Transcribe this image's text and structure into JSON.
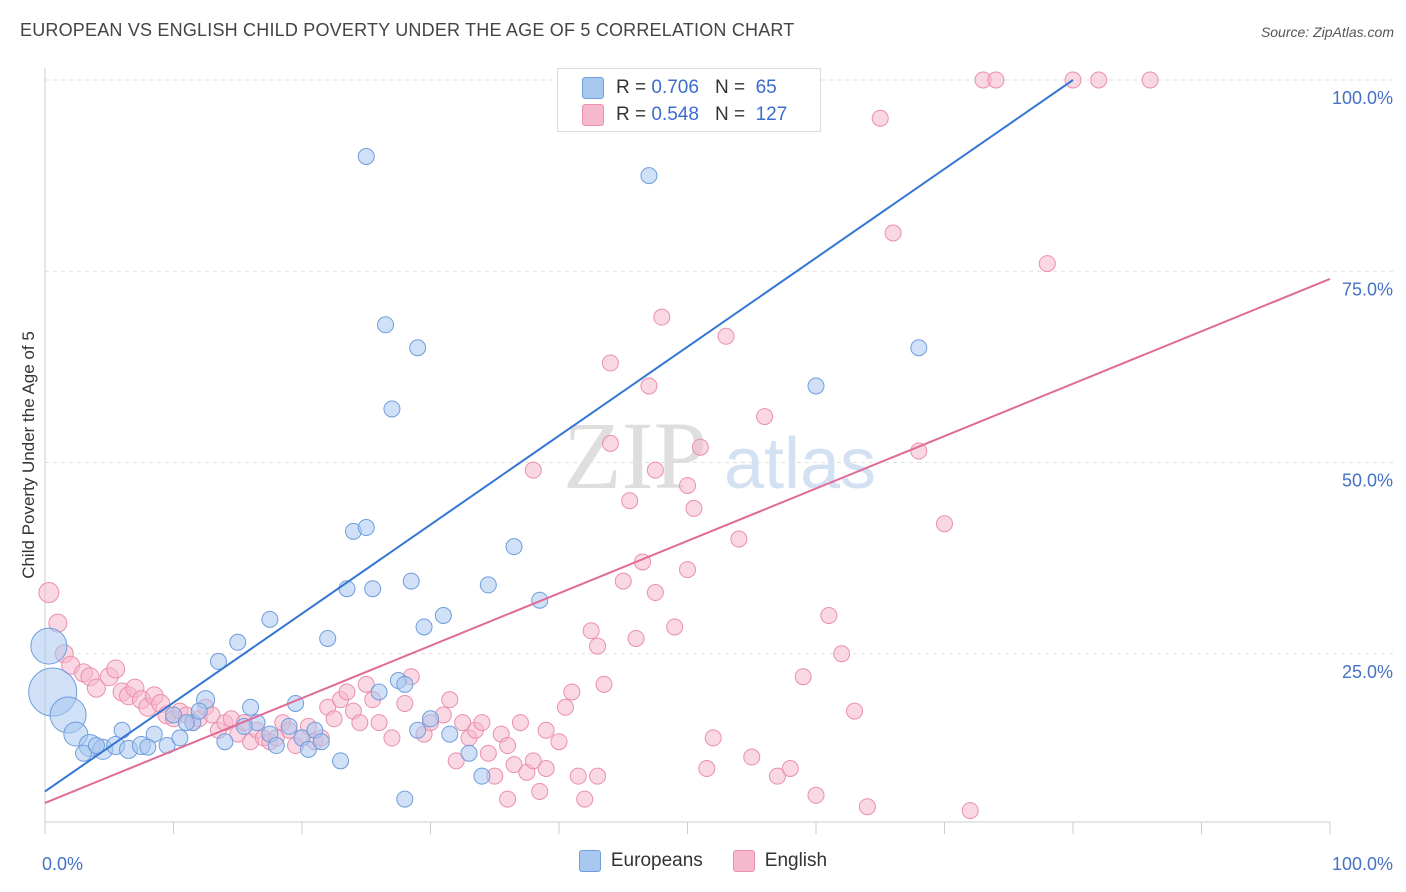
{
  "title": "EUROPEAN VS ENGLISH CHILD POVERTY UNDER THE AGE OF 5 CORRELATION CHART",
  "source": "Source: ZipAtlas.com",
  "watermark": {
    "zip": "ZIP",
    "atlas": "atlas"
  },
  "stats": [
    {
      "r_label": "R =",
      "r_value": "0.706",
      "n_label": "N =",
      "n_value": "65"
    },
    {
      "r_label": "R =",
      "r_value": "0.548",
      "n_label": "N =",
      "n_value": "127"
    }
  ],
  "colors": {
    "europeans_fill": "#a9c8f0",
    "europeans_stroke": "#6f9ddd",
    "europeans_line": "#3575d3",
    "english_fill": "#f6b8cc",
    "english_stroke": "#ea8fae",
    "english_line": "#e06b97",
    "tick_label": "#4472c4",
    "grid": "#e0e0e0"
  },
  "chart_data": {
    "type": "scatter",
    "xlabel": "",
    "ylabel": "Child Poverty Under the Age of 5",
    "xlim": [
      0,
      100
    ],
    "ylim": [
      0,
      100
    ],
    "x_tick_labels": [
      "0.0%",
      "100.0%"
    ],
    "y_ticks": [
      25,
      50,
      75,
      100
    ],
    "y_tick_labels": [
      "25.0%",
      "50.0%",
      "75.0%",
      "100.0%"
    ],
    "grid": true,
    "legend": [
      "Europeans",
      "English"
    ],
    "series": [
      {
        "name": "Europeans",
        "trend": {
          "x": [
            0,
            80
          ],
          "y": [
            7.0,
            100
          ]
        },
        "points": [
          [
            0.3,
            26,
            18
          ],
          [
            0.6,
            20,
            24
          ],
          [
            1.8,
            17,
            18
          ],
          [
            2.4,
            14.5,
            12
          ],
          [
            3.5,
            13,
            11
          ],
          [
            4.5,
            12.5,
            10
          ],
          [
            5.5,
            13,
            9
          ],
          [
            6.5,
            12.5,
            9
          ],
          [
            7.5,
            13,
            9
          ],
          [
            8.5,
            14.5,
            8
          ],
          [
            9.5,
            13,
            8
          ],
          [
            10.5,
            14,
            8
          ],
          [
            11.5,
            16,
            8
          ],
          [
            12.5,
            19,
            9
          ],
          [
            13.5,
            24,
            8
          ],
          [
            14,
            13.5,
            8
          ],
          [
            15,
            26.5,
            8
          ],
          [
            16,
            18,
            8
          ],
          [
            16.5,
            16,
            8
          ],
          [
            17.5,
            29.5,
            8
          ],
          [
            17.5,
            14.5,
            8
          ],
          [
            18,
            13,
            8
          ],
          [
            19.5,
            18.5,
            8
          ],
          [
            20,
            14,
            8
          ],
          [
            21,
            15,
            8
          ],
          [
            22,
            27,
            8
          ],
          [
            23,
            11,
            8
          ],
          [
            23.5,
            33.5,
            8
          ],
          [
            24,
            41,
            8
          ],
          [
            25,
            41.5,
            8
          ],
          [
            25.5,
            33.5,
            8
          ],
          [
            20.5,
            12.5,
            8
          ],
          [
            26.5,
            68,
            8
          ],
          [
            27,
            57,
            8
          ],
          [
            27.5,
            21.5,
            8
          ],
          [
            28,
            21,
            8
          ],
          [
            29,
            15,
            8
          ],
          [
            29,
            65,
            8
          ],
          [
            29.5,
            28.5,
            8
          ],
          [
            31,
            30,
            8
          ],
          [
            25,
            90,
            8
          ],
          [
            28.5,
            34.5,
            8
          ],
          [
            30,
            16.5,
            8
          ],
          [
            31.5,
            14.5,
            8
          ],
          [
            33,
            12,
            8
          ],
          [
            34,
            9,
            8
          ],
          [
            34.5,
            34,
            8
          ],
          [
            28,
            6,
            8
          ],
          [
            36.5,
            39,
            8
          ],
          [
            38.5,
            32,
            8
          ],
          [
            47,
            87.5,
            8
          ],
          [
            60,
            60,
            8
          ],
          [
            68,
            65,
            8
          ],
          [
            51,
            100,
            8
          ],
          [
            10,
            17,
            8
          ],
          [
            6,
            15,
            8
          ],
          [
            19,
            15.5,
            8
          ],
          [
            21.5,
            13.5,
            8
          ],
          [
            3,
            12,
            8
          ],
          [
            12,
            17.5,
            8
          ],
          [
            8,
            12.8,
            8
          ],
          [
            15.5,
            15.5,
            8
          ],
          [
            4,
            13,
            8
          ],
          [
            11,
            16,
            8
          ],
          [
            26,
            20,
            8
          ]
        ]
      },
      {
        "name": "English",
        "trend": {
          "x": [
            0,
            100
          ],
          "y": [
            5.5,
            74
          ]
        },
        "points": [
          [
            0.3,
            33,
            10
          ],
          [
            1,
            29,
            9
          ],
          [
            1.5,
            25,
            9
          ],
          [
            2,
            23.5,
            9
          ],
          [
            3,
            22.5,
            9
          ],
          [
            3.5,
            22,
            9
          ],
          [
            4,
            20.5,
            9
          ],
          [
            5,
            22,
            9
          ],
          [
            5.5,
            23,
            9
          ],
          [
            6,
            20,
            9
          ],
          [
            6.5,
            19.5,
            9
          ],
          [
            7,
            20.5,
            9
          ],
          [
            7.5,
            19,
            9
          ],
          [
            8,
            18,
            9
          ],
          [
            8.5,
            19.5,
            9
          ],
          [
            9,
            18.5,
            9
          ],
          [
            9.5,
            17,
            9
          ],
          [
            10,
            16.5,
            8
          ],
          [
            10.5,
            17.5,
            8
          ],
          [
            11,
            17,
            8
          ],
          [
            11.5,
            16,
            8
          ],
          [
            12,
            16.5,
            8
          ],
          [
            12.5,
            18,
            8
          ],
          [
            13,
            17,
            8
          ],
          [
            13.5,
            15,
            8
          ],
          [
            14,
            16,
            8
          ],
          [
            14.5,
            16.5,
            8
          ],
          [
            15,
            14.5,
            8
          ],
          [
            15.5,
            16,
            8
          ],
          [
            16,
            13.5,
            8
          ],
          [
            16.5,
            15,
            8
          ],
          [
            17,
            14,
            8
          ],
          [
            17.5,
            13.5,
            8
          ],
          [
            18,
            14,
            8
          ],
          [
            18.5,
            16,
            8
          ],
          [
            19,
            15,
            8
          ],
          [
            19.5,
            13,
            8
          ],
          [
            20,
            14,
            8
          ],
          [
            20.5,
            15.5,
            8
          ],
          [
            21,
            13.5,
            8
          ],
          [
            21.5,
            14,
            8
          ],
          [
            22,
            18,
            8
          ],
          [
            22.5,
            16.5,
            8
          ],
          [
            23,
            19,
            8
          ],
          [
            23.5,
            20,
            8
          ],
          [
            24,
            17.5,
            8
          ],
          [
            24.5,
            16,
            8
          ],
          [
            25,
            21,
            8
          ],
          [
            25.5,
            19,
            8
          ],
          [
            26,
            16,
            8
          ],
          [
            27,
            14,
            8
          ],
          [
            28,
            18.5,
            8
          ],
          [
            28.5,
            22,
            8
          ],
          [
            29.5,
            14.5,
            8
          ],
          [
            30,
            16,
            8
          ],
          [
            31,
            17,
            8
          ],
          [
            31.5,
            19,
            8
          ],
          [
            32,
            11,
            8
          ],
          [
            32.5,
            16,
            8
          ],
          [
            33,
            14,
            8
          ],
          [
            33.5,
            15,
            8
          ],
          [
            34,
            16,
            8
          ],
          [
            34.5,
            12,
            8
          ],
          [
            35,
            9,
            8
          ],
          [
            35.5,
            14.5,
            8
          ],
          [
            36,
            13,
            8
          ],
          [
            36.5,
            10.5,
            8
          ],
          [
            37,
            16,
            8
          ],
          [
            37.5,
            9.5,
            8
          ],
          [
            38,
            11,
            8
          ],
          [
            38.5,
            7,
            8
          ],
          [
            39,
            10,
            8
          ],
          [
            40,
            13.5,
            8
          ],
          [
            40.5,
            18,
            8
          ],
          [
            41,
            20,
            8
          ],
          [
            41.5,
            9,
            8
          ],
          [
            42,
            6,
            8
          ],
          [
            42.5,
            28,
            8
          ],
          [
            43,
            26,
            8
          ],
          [
            43.5,
            21,
            8
          ],
          [
            44,
            52.5,
            8
          ],
          [
            45,
            34.5,
            8
          ],
          [
            45.5,
            45,
            8
          ],
          [
            46,
            27,
            8
          ],
          [
            46.5,
            37,
            8
          ],
          [
            47,
            60,
            8
          ],
          [
            47.5,
            33,
            8
          ],
          [
            48,
            69,
            8
          ],
          [
            49,
            28.5,
            8
          ],
          [
            50,
            36,
            8
          ],
          [
            50.5,
            44,
            8
          ],
          [
            51,
            52,
            8
          ],
          [
            51.5,
            10,
            8
          ],
          [
            52,
            14,
            8
          ],
          [
            53,
            66.5,
            8
          ],
          [
            54,
            40,
            8
          ],
          [
            55,
            11.5,
            8
          ],
          [
            56,
            56,
            8
          ],
          [
            57,
            9,
            8
          ],
          [
            58,
            10,
            8
          ],
          [
            59,
            22,
            8
          ],
          [
            60,
            6.5,
            8
          ],
          [
            61,
            30,
            8
          ],
          [
            62,
            25,
            8
          ],
          [
            63,
            17.5,
            8
          ],
          [
            64,
            5,
            8
          ],
          [
            65,
            95,
            8
          ],
          [
            66,
            80,
            8
          ],
          [
            68,
            51.5,
            8
          ],
          [
            70,
            42,
            8
          ],
          [
            72,
            4.5,
            8
          ],
          [
            73,
            100,
            8
          ],
          [
            74,
            100,
            8
          ],
          [
            78,
            76,
            8
          ],
          [
            80,
            100,
            8
          ],
          [
            82,
            100,
            8
          ],
          [
            86,
            100,
            8
          ],
          [
            55.5,
            100,
            8
          ],
          [
            57,
            100,
            8
          ],
          [
            58,
            100,
            8
          ],
          [
            38,
            49,
            8
          ],
          [
            44,
            63,
            8
          ],
          [
            47.5,
            49,
            8
          ],
          [
            50,
            47,
            8
          ],
          [
            39,
            15,
            8
          ],
          [
            36,
            6,
            8
          ],
          [
            43,
            9,
            8
          ]
        ]
      }
    ]
  }
}
